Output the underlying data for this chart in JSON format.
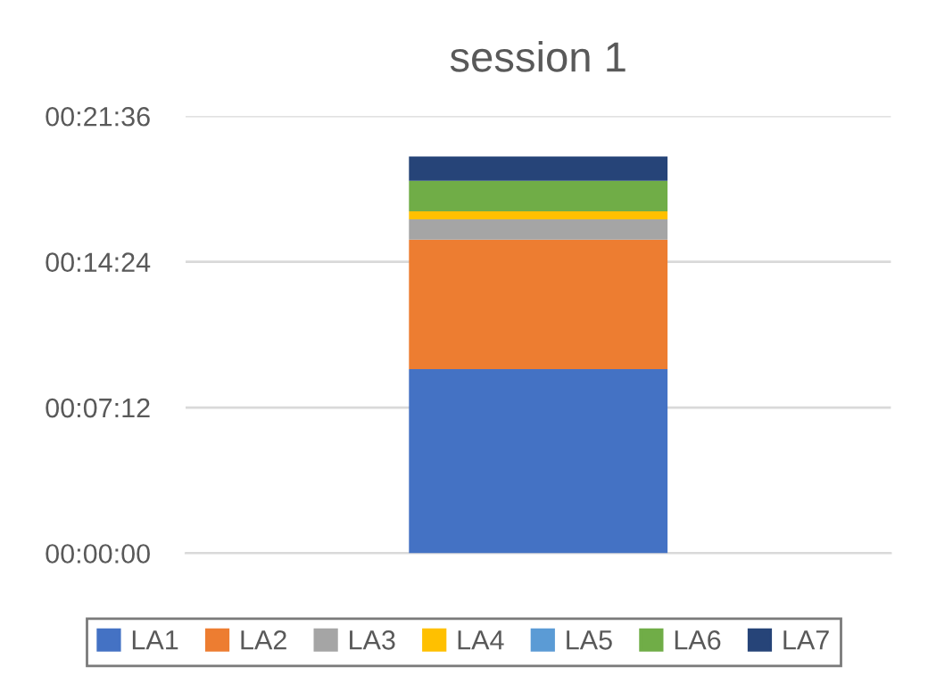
{
  "chart_data": {
    "type": "bar",
    "title": "session 1",
    "stacked": true,
    "categories": [
      null
    ],
    "series": [
      {
        "name": "LA1",
        "color": "#4472c4",
        "values": [
          9.1
        ]
      },
      {
        "name": "LA2",
        "color": "#ed7d31",
        "values": [
          6.4
        ]
      },
      {
        "name": "LA3",
        "color": "#a5a5a5",
        "values": [
          1.0
        ]
      },
      {
        "name": "LA4",
        "color": "#ffc000",
        "values": [
          0.4
        ]
      },
      {
        "name": "LA5",
        "color": "#5b9bd5",
        "values": [
          0
        ]
      },
      {
        "name": "LA6",
        "color": "#70ad47",
        "values": [
          1.5
        ]
      },
      {
        "name": "LA7",
        "color": "#264478",
        "values": [
          1.2
        ]
      }
    ],
    "ylim": [
      0,
      21.6
    ],
    "yticks": [
      {
        "value": 0,
        "label": "00:00:00"
      },
      {
        "value": 7.2,
        "label": "00:07:12"
      },
      {
        "value": 14.4,
        "label": "00:14:24"
      },
      {
        "value": 21.6,
        "label": "00:21:36"
      }
    ],
    "grid": "y",
    "legend": "bottom"
  }
}
